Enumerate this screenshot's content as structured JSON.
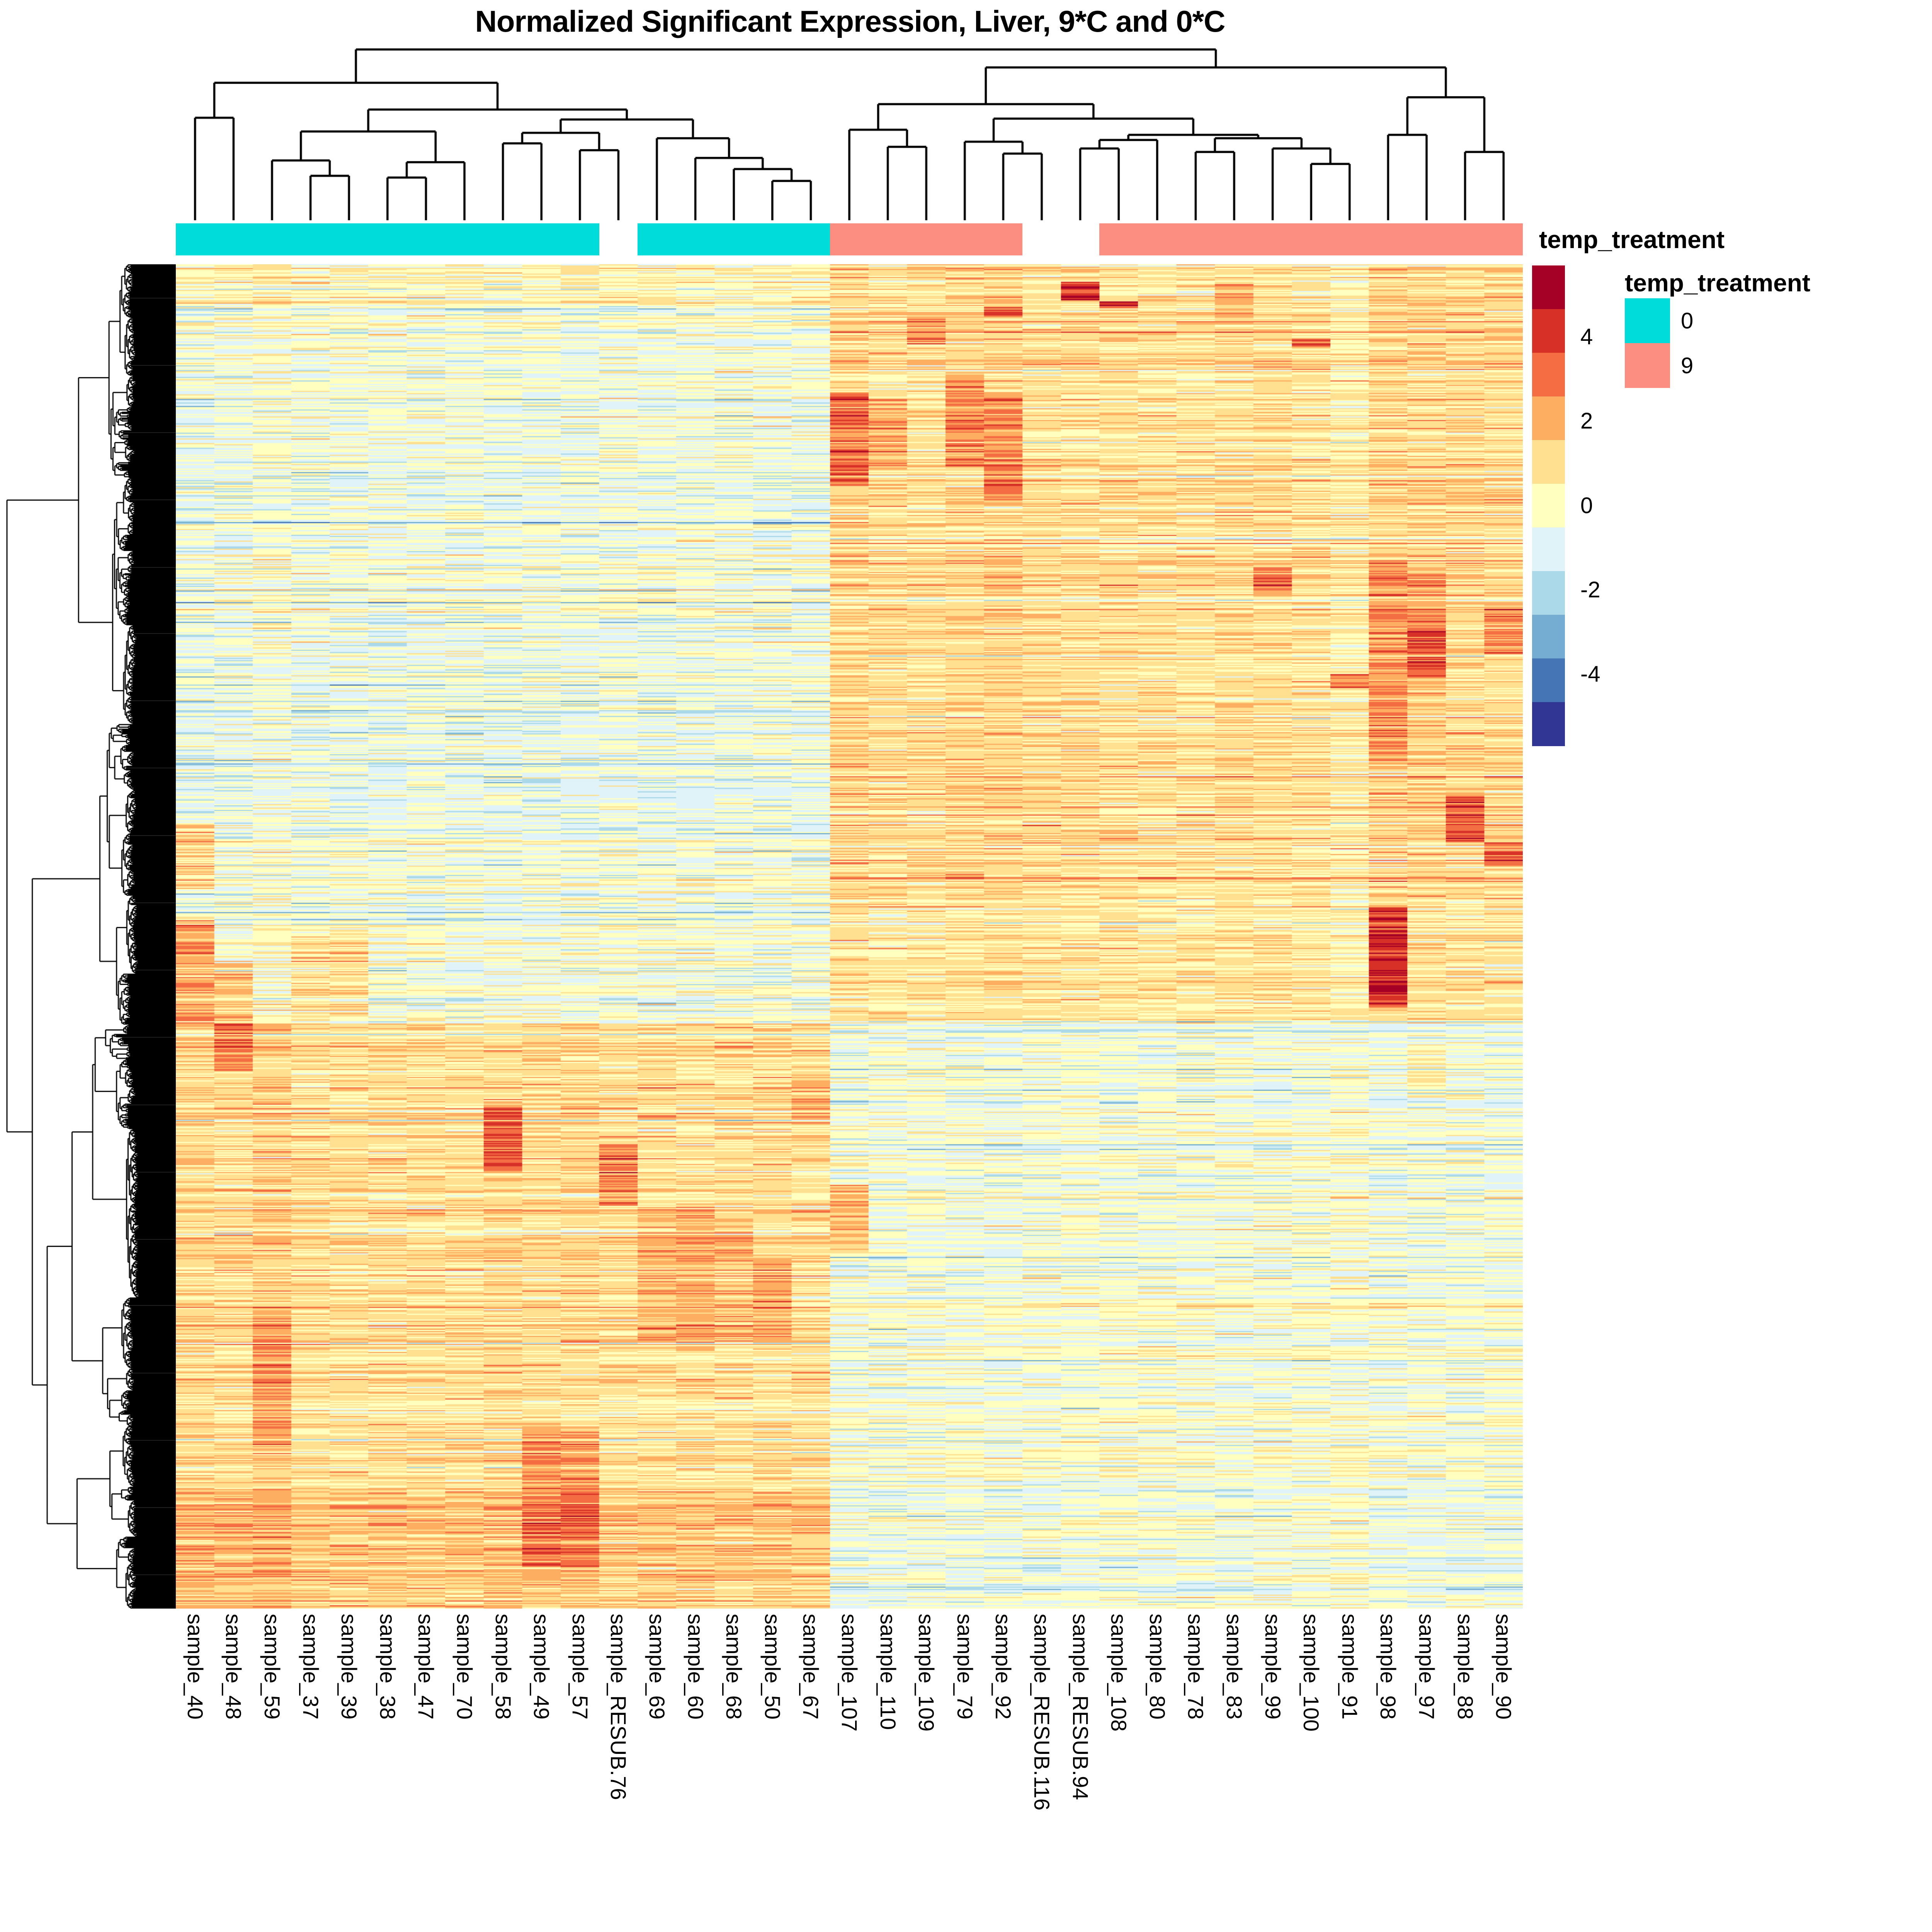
{
  "title": "Normalized Significant Expression, Liver, 9*C and 0*C",
  "annotation_bar": {
    "title": "temp_treatment"
  },
  "legend": {
    "scale_ticks": [
      4,
      2,
      0,
      -2,
      -4
    ],
    "scale_range": [
      -5.7,
      5.7
    ],
    "palette_high_to_low": [
      "#a50026",
      "#d73027",
      "#f46d43",
      "#fdae61",
      "#fee090",
      "#ffffbf",
      "#e0f3f8",
      "#abd9e9",
      "#74add1",
      "#4575b4",
      "#313695"
    ],
    "annotation_legend": {
      "title": "temp_treatment",
      "entries": [
        {
          "label": "0",
          "color": "#00dcd9"
        },
        {
          "label": "9",
          "color": "#fb8d81"
        }
      ]
    }
  },
  "columns": [
    {
      "name": "sample_40",
      "treatment": "0"
    },
    {
      "name": "sample_48",
      "treatment": "0"
    },
    {
      "name": "sample_59",
      "treatment": "0"
    },
    {
      "name": "sample_37",
      "treatment": "0"
    },
    {
      "name": "sample_39",
      "treatment": "0"
    },
    {
      "name": "sample_38",
      "treatment": "0"
    },
    {
      "name": "sample_47",
      "treatment": "0"
    },
    {
      "name": "sample_70",
      "treatment": "0"
    },
    {
      "name": "sample_58",
      "treatment": "0"
    },
    {
      "name": "sample_49",
      "treatment": "0"
    },
    {
      "name": "sample_57",
      "treatment": "0"
    },
    {
      "name": "sample_RESUB.76",
      "treatment": null
    },
    {
      "name": "sample_69",
      "treatment": "0"
    },
    {
      "name": "sample_60",
      "treatment": "0"
    },
    {
      "name": "sample_68",
      "treatment": "0"
    },
    {
      "name": "sample_50",
      "treatment": "0"
    },
    {
      "name": "sample_67",
      "treatment": "0"
    },
    {
      "name": "sample_107",
      "treatment": "9"
    },
    {
      "name": "sample_110",
      "treatment": "9"
    },
    {
      "name": "sample_109",
      "treatment": "9"
    },
    {
      "name": "sample_79",
      "treatment": "9"
    },
    {
      "name": "sample_92",
      "treatment": "9"
    },
    {
      "name": "sample_RESUB.116",
      "treatment": null
    },
    {
      "name": "sample_RESUB.94",
      "treatment": null
    },
    {
      "name": "sample_108",
      "treatment": "9"
    },
    {
      "name": "sample_80",
      "treatment": "9"
    },
    {
      "name": "sample_78",
      "treatment": "9"
    },
    {
      "name": "sample_83",
      "treatment": "9"
    },
    {
      "name": "sample_99",
      "treatment": "9"
    },
    {
      "name": "sample_100",
      "treatment": "9"
    },
    {
      "name": "sample_91",
      "treatment": "9"
    },
    {
      "name": "sample_98",
      "treatment": "9"
    },
    {
      "name": "sample_97",
      "treatment": "9"
    },
    {
      "name": "sample_88",
      "treatment": "9"
    },
    {
      "name": "sample_90",
      "treatment": "9"
    }
  ],
  "chart_data": {
    "type": "heatmap",
    "title": "Normalized Significant Expression, Liver, 9*C and 0*C",
    "legend_position": "right",
    "colorbar_breaks": [
      -5.7,
      -4,
      -2,
      0,
      2,
      4,
      5.7
    ],
    "n_columns": 35,
    "rows": "unlabeled clustered genes (~1158 rows, row dendrogram on left)",
    "column_annotation_variable": "temp_treatment",
    "column_annotation_values": {
      "0": "#00dcd9",
      "9": "#fb8d81",
      "NA": "#ffffff"
    },
    "cluster_summary": [
      "columns cluster into a 0*C group (left 17 samples, cyan) and a 9*C group (right 18 samples, salmon)",
      "rows split ~56%/44%: top block up-regulated in 9*C samples (warm colors right half), bottom block up-regulated in 0*C samples (warm colors left half)"
    ],
    "column_dendrogram": {
      "h": 1.0,
      "c": [
        {
          "h": 0.805,
          "c": [
            {
              "h": 0.6,
              "c": [
                1,
                2
              ]
            },
            {
              "h": 0.648,
              "c": [
                {
                  "h": 0.52,
                  "c": [
                    {
                      "h": 0.35,
                      "c": [
                        3,
                        {
                          "h": 0.26,
                          "c": [
                            4,
                            5
                          ]
                        }
                      ]
                    },
                    {
                      "h": 0.34,
                      "c": [
                        {
                          "h": 0.25,
                          "c": [
                            6,
                            7
                          ]
                        },
                        8
                      ]
                    }
                  ]
                },
                {
                  "h": 0.59,
                  "c": [
                    {
                      "h": 0.512,
                      "c": [
                        {
                          "h": 0.45,
                          "c": [
                            9,
                            10
                          ]
                        },
                        {
                          "h": 0.41,
                          "c": [
                            11,
                            12
                          ]
                        }
                      ]
                    },
                    {
                      "h": 0.48,
                      "c": [
                        13,
                        {
                          "h": 0.365,
                          "c": [
                            14,
                            {
                              "h": 0.3,
                              "c": [
                                15,
                                {
                                  "h": 0.23,
                                  "c": [
                                    16,
                                    17
                                  ]
                                }
                              ]
                            }
                          ]
                        }
                      ]
                    }
                  ]
                }
              ]
            }
          ]
        },
        {
          "h": 0.895,
          "c": [
            {
              "h": 0.68,
              "c": [
                {
                  "h": 0.53,
                  "c": [
                    18,
                    {
                      "h": 0.43,
                      "c": [
                        19,
                        20
                      ]
                    }
                  ]
                },
                {
                  "h": 0.595,
                  "c": [
                    {
                      "h": 0.46,
                      "c": [
                        21,
                        {
                          "h": 0.39,
                          "c": [
                            22,
                            23
                          ]
                        }
                      ]
                    },
                    {
                      "h": 0.5,
                      "c": [
                        {
                          "h": 0.47,
                          "c": [
                            {
                              "h": 0.42,
                              "c": [
                                24,
                                25
                              ]
                            },
                            26
                          ]
                        },
                        {
                          "h": 0.48,
                          "c": [
                            {
                              "h": 0.4,
                              "c": [
                                27,
                                28
                              ]
                            },
                            {
                              "h": 0.42,
                              "c": [
                                29,
                                {
                                  "h": 0.33,
                                  "c": [
                                    30,
                                    31
                                  ]
                                }
                              ]
                            }
                          ]
                        }
                      ]
                    }
                  ]
                }
              ]
            },
            {
              "h": 0.72,
              "c": [
                {
                  "h": 0.5,
                  "c": [
                    32,
                    33
                  ]
                },
                {
                  "h": 0.4,
                  "c": [
                    34,
                    35
                  ]
                }
              ]
            }
          ]
        }
      ]
    },
    "render_spec": {
      "seed": 1337,
      "n_rows": 1158,
      "row_sd": 0.55,
      "cell_sd": 0.5,
      "bands": [
        {
          "f0": 0.0,
          "f1": 0.03,
          "c": 0.2,
          "s": 1.2
        },
        {
          "f0": 0.03,
          "f1": 0.23,
          "c": -0.45,
          "s": 1.0
        },
        {
          "f0": 0.23,
          "f1": 0.43,
          "c": -0.55,
          "s": 1.05
        },
        {
          "f0": 0.43,
          "f1": 0.565,
          "c": -0.25,
          "s": 0.85
        },
        {
          "f0": 0.565,
          "f1": 0.76,
          "c": 1.0,
          "s": -0.45
        },
        {
          "f0": 0.76,
          "f1": 0.91,
          "c": 0.85,
          "s": -0.35
        },
        {
          "f0": 0.91,
          "f1": 1.001,
          "c": 1.45,
          "s": -0.5
        }
      ],
      "col_multiplier": {
        "1": 1.25,
        "2": 1.15,
        "3": 1.1,
        "9": 1.15,
        "10": 1.1,
        "11": 1.15,
        "12": 0.95,
        "18": 1.2,
        "21": 1.15,
        "22": 1.25,
        "26": 0.9,
        "27": 0.85,
        "30": 0.9,
        "31": 0.55,
        "32": 1.25,
        "33": 1.2,
        "34": 1.1,
        "35": 1.1
      },
      "col_offset": {
        "3": 0.3
      },
      "hotspots": [
        {
          "col": 1,
          "f0": 0.415,
          "f1": 0.465,
          "add": 1.6
        },
        {
          "col": 1,
          "f0": 0.485,
          "f1": 0.565,
          "add": 2.4
        },
        {
          "col": 2,
          "f0": 0.52,
          "f1": 0.6,
          "add": 1.8
        },
        {
          "col": 3,
          "f0": 0.78,
          "f1": 0.88,
          "add": 1.0
        },
        {
          "col": 4,
          "f0": 0.5,
          "f1": 0.565,
          "add": 1.3
        },
        {
          "col": 5,
          "f0": 0.495,
          "f1": 0.56,
          "add": 1.2
        },
        {
          "col": 9,
          "f0": 0.625,
          "f1": 0.675,
          "add": 2.3
        },
        {
          "col": 10,
          "f0": 0.865,
          "f1": 0.97,
          "add": 1.3
        },
        {
          "col": 11,
          "f0": 0.865,
          "f1": 0.97,
          "add": 1.3
        },
        {
          "col": 12,
          "f0": 0.655,
          "f1": 0.7,
          "add": 1.9
        },
        {
          "col": 13,
          "f0": 0.7,
          "f1": 0.8,
          "add": 0.9
        },
        {
          "col": 14,
          "f0": 0.7,
          "f1": 0.8,
          "add": 1.0
        },
        {
          "col": 15,
          "f0": 0.71,
          "f1": 0.8,
          "add": 0.9
        },
        {
          "col": 16,
          "f0": 0.74,
          "f1": 0.8,
          "add": 1.1
        },
        {
          "col": 17,
          "f0": 0.6,
          "f1": 0.64,
          "add": 1.0
        },
        {
          "col": 18,
          "f0": 0.095,
          "f1": 0.165,
          "add": 2.0
        },
        {
          "col": 18,
          "f0": 0.685,
          "f1": 0.735,
          "add": 2.2
        },
        {
          "col": 19,
          "f0": 0.1,
          "f1": 0.15,
          "add": 1.1
        },
        {
          "col": 20,
          "f0": 0.04,
          "f1": 0.06,
          "add": 1.2
        },
        {
          "col": 21,
          "f0": 0.08,
          "f1": 0.15,
          "add": 1.5
        },
        {
          "col": 22,
          "f0": 0.031,
          "f1": 0.039,
          "add": 2.2
        },
        {
          "col": 22,
          "f0": 0.095,
          "f1": 0.175,
          "add": 1.6
        },
        {
          "col": 24,
          "f0": 0.013,
          "f1": 0.027,
          "add": 3.2
        },
        {
          "col": 25,
          "f0": 0.028,
          "f1": 0.033,
          "add": 2.8
        },
        {
          "col": 28,
          "f0": 0.015,
          "f1": 0.045,
          "add": 1.0
        },
        {
          "col": 29,
          "f0": 0.225,
          "f1": 0.245,
          "add": 1.7
        },
        {
          "col": 30,
          "f0": 0.055,
          "f1": 0.062,
          "add": 2.0
        },
        {
          "col": 31,
          "f0": 0.305,
          "f1": 0.315,
          "add": 2.3
        },
        {
          "col": 32,
          "f0": 0.22,
          "f1": 0.37,
          "add": 1.2
        },
        {
          "col": 32,
          "f0": 0.478,
          "f1": 0.553,
          "add": 3.2
        },
        {
          "col": 33,
          "f0": 0.225,
          "f1": 0.27,
          "add": 1.2
        },
        {
          "col": 33,
          "f0": 0.27,
          "f1": 0.308,
          "add": 2.3
        },
        {
          "col": 33,
          "f0": 0.58,
          "f1": 0.62,
          "add": 0.8
        },
        {
          "col": 34,
          "f0": 0.395,
          "f1": 0.43,
          "add": 2.3
        },
        {
          "col": 35,
          "f0": 0.255,
          "f1": 0.29,
          "add": 1.3
        },
        {
          "col": 35,
          "f0": 0.43,
          "f1": 0.447,
          "add": 2.1
        }
      ]
    }
  }
}
